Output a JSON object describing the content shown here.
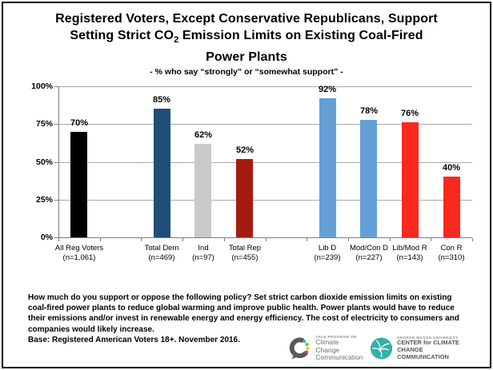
{
  "title": {
    "prefix": "Registered Voters, Except Conservative Republicans, Support\nSetting Strict CO",
    "subscript": "2",
    "suffix": " Emission Limits on Existing Coal-Fired\nPower Plants",
    "subtitle": "- % who say “strongly” or “somewhat support” -"
  },
  "chart_data": {
    "type": "bar",
    "title": "Registered Voters, Except Conservative Republicans, Support Setting Strict CO2 Emission Limits on Existing Coal-Fired Power Plants",
    "subtitle": "- % who say \"strongly\" or \"somewhat support\" -",
    "categories": [
      "All Reg Voters",
      "Total Dem",
      "Ind",
      "Total Rep",
      "Lib D",
      "Mod/Con D",
      "Lib/Mod R",
      "Con R"
    ],
    "n_labels": [
      "(n=1,061)",
      "(n=469)",
      "(n=97)",
      "(n=455)",
      "(n=239)",
      "(n=227)",
      "(n=143)",
      "(n=310)"
    ],
    "values": [
      70,
      85,
      62,
      52,
      92,
      78,
      76,
      40
    ],
    "value_labels": [
      "70%",
      "85%",
      "62%",
      "52%",
      "92%",
      "78%",
      "76%",
      "40%"
    ],
    "bar_colors": [
      "#000000",
      "#1f4e79",
      "#c9c9c9",
      "#a51c0f",
      "#64a0d6",
      "#64a0d6",
      "#fa291d",
      "#fa291d"
    ],
    "slot_indices": [
      0,
      2,
      3,
      4,
      6,
      7,
      8,
      9
    ],
    "total_slots": 10,
    "ylim": [
      0,
      100
    ],
    "yticks": [
      0,
      25,
      50,
      75,
      100
    ],
    "ytick_labels": [
      "0%",
      "25%",
      "50%",
      "75%",
      "100%"
    ],
    "grid": true,
    "xlabel": "",
    "ylabel": ""
  },
  "footer": {
    "question": "How much do you support or oppose the following policy? Set strict carbon dioxide emission limits on existing coal-fired power plants to reduce global warming and improve public health. Power plants would have to reduce their emissions and/or invest in renewable energy and energy efficiency. The cost of electricity to consumers and companies would likely increase.",
    "base": "Base: Registered American Voters 18+. November 2016."
  },
  "logos": {
    "yale": {
      "program": "YALE PROGRAM ON",
      "line1": "Climate Change",
      "line2": "Communication",
      "mark_gray": "#58595b",
      "dot_colors": [
        "#29b8ce",
        "#84bd00",
        "#ffc600",
        "#e8336d"
      ]
    },
    "gmu": {
      "university": "GEORGE MASON UNIVERSITY",
      "line1": "CENTER for CLIMATE CHANGE",
      "line2": "COMMUNICATION",
      "mark_teal": "#35afa9"
    }
  },
  "colors": {
    "gridline": "#ababab",
    "axis": "#7f7f7f",
    "background": "#ffffff",
    "border": "#000000"
  }
}
